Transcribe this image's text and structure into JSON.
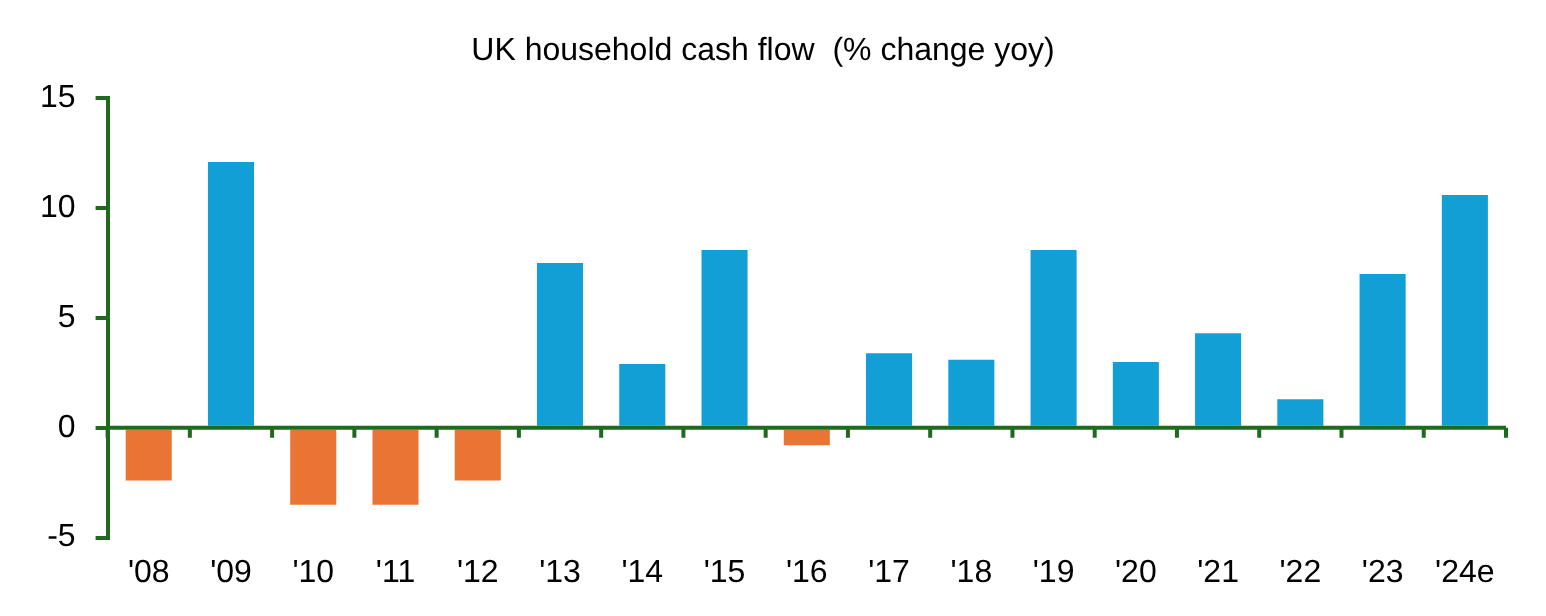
{
  "chart_data": {
    "type": "bar",
    "title": "UK household cash flow  (% change yoy)",
    "categories": [
      "'08",
      "'09",
      "'10",
      "'11",
      "'12",
      "'13",
      "'14",
      "'15",
      "'16",
      "'17",
      "'18",
      "'19",
      "'20",
      "'21",
      "'22",
      "'23",
      "'24e"
    ],
    "values": [
      -2.4,
      12.1,
      -3.5,
      -3.5,
      -2.4,
      7.5,
      2.9,
      8.1,
      -0.8,
      3.4,
      3.1,
      8.1,
      3.0,
      4.3,
      1.3,
      7.0,
      10.6
    ],
    "colors": [
      "#e97434",
      "#119fd6",
      "#e97434",
      "#e97434",
      "#e97434",
      "#119fd6",
      "#119fd6",
      "#119fd6",
      "#e97434",
      "#119fd6",
      "#119fd6",
      "#119fd6",
      "#119fd6",
      "#119fd6",
      "#119fd6",
      "#119fd6",
      "#119fd6"
    ],
    "ref_lines": [
      {
        "axis": "y",
        "value": 0,
        "color": "#1e6b1e"
      }
    ],
    "ylim": [
      -5,
      15
    ],
    "yticks": [
      -5,
      0,
      5,
      10,
      15
    ],
    "grid": false,
    "legend": false
  }
}
